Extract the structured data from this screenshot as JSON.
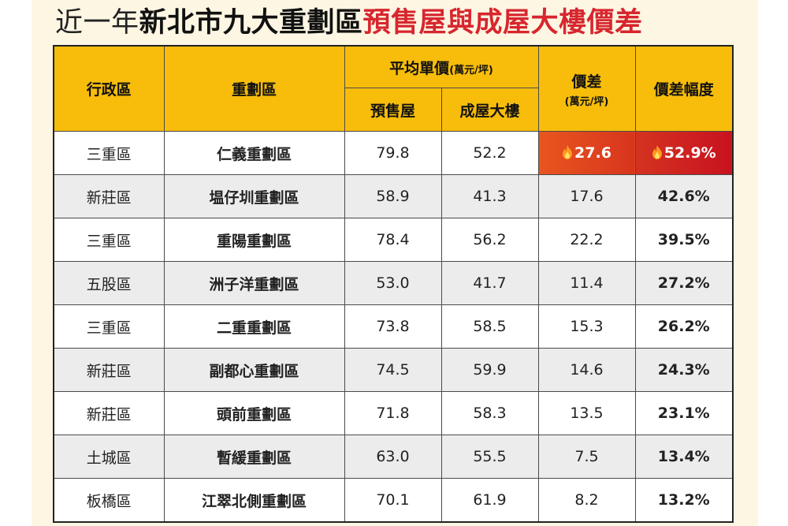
{
  "title": {
    "part1": "近一年",
    "part2": "新北市九大重劃區",
    "part3": "預售屋與成屋大樓價差"
  },
  "header": {
    "district": "行政區",
    "zone": "重劃區",
    "avg_price": "平均單價",
    "avg_price_unit": "(萬元/坪)",
    "presale": "預售屋",
    "existing": "成屋大樓",
    "diff": "價差",
    "diff_unit": "(萬元/坪)",
    "diff_pct": "價差幅度"
  },
  "icons": {
    "hot": "fire-icon"
  },
  "colors": {
    "header_bg": "#f7bd0a",
    "title_red": "#d7262e",
    "hot_diff": "#e8561f",
    "hot_pct": "#c8121f"
  },
  "chart_data": {
    "type": "table",
    "title": "近一年新北市九大重劃區預售屋與成屋大樓價差",
    "columns": [
      "行政區",
      "重劃區",
      "預售屋",
      "成屋大樓",
      "價差",
      "價差幅度"
    ],
    "rows": [
      {
        "district": "三重區",
        "zone": "仁義重劃區",
        "presale": "79.8",
        "existing": "52.2",
        "diff": "27.6",
        "pct": "52.9%",
        "hot": true
      },
      {
        "district": "新莊區",
        "zone": "塭仔圳重劃區",
        "presale": "58.9",
        "existing": "41.3",
        "diff": "17.6",
        "pct": "42.6%",
        "hot": false
      },
      {
        "district": "三重區",
        "zone": "重陽重劃區",
        "presale": "78.4",
        "existing": "56.2",
        "diff": "22.2",
        "pct": "39.5%",
        "hot": false
      },
      {
        "district": "五股區",
        "zone": "洲子洋重劃區",
        "presale": "53.0",
        "existing": "41.7",
        "diff": "11.4",
        "pct": "27.2%",
        "hot": false
      },
      {
        "district": "三重區",
        "zone": "二重重劃區",
        "presale": "73.8",
        "existing": "58.5",
        "diff": "15.3",
        "pct": "26.2%",
        "hot": false
      },
      {
        "district": "新莊區",
        "zone": "副都心重劃區",
        "presale": "74.5",
        "existing": "59.9",
        "diff": "14.6",
        "pct": "24.3%",
        "hot": false
      },
      {
        "district": "新莊區",
        "zone": "頭前重劃區",
        "presale": "71.8",
        "existing": "58.3",
        "diff": "13.5",
        "pct": "23.1%",
        "hot": false
      },
      {
        "district": "土城區",
        "zone": "暫緩重劃區",
        "presale": "63.0",
        "existing": "55.5",
        "diff": "7.5",
        "pct": "13.4%",
        "hot": false
      },
      {
        "district": "板橋區",
        "zone": "江翠北側重劃區",
        "presale": "70.1",
        "existing": "61.9",
        "diff": "8.2",
        "pct": "13.2%",
        "hot": false
      }
    ]
  }
}
